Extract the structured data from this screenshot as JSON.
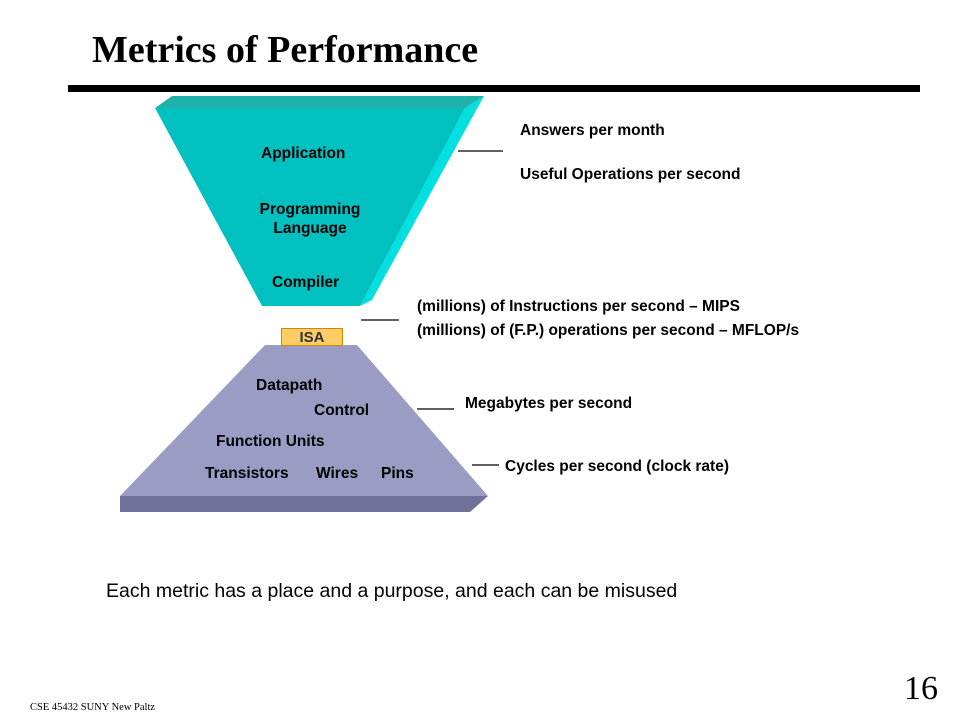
{
  "slide": {
    "title": "Metrics of Performance",
    "summary": "Each metric has a place and a purpose, and each can be misused",
    "page_number": "16",
    "footer": "CSE 45432 SUNY New Paltz"
  },
  "diagram": {
    "top_levels": {
      "application": "Application",
      "programming_language_1": "Programming",
      "programming_language_2": "Language",
      "compiler": "Compiler"
    },
    "isa": "ISA",
    "bottom_levels": {
      "datapath": "Datapath",
      "control": "Control",
      "function_units": "Function Units",
      "transistors": "Transistors",
      "wires": "Wires",
      "pins": "Pins"
    },
    "colors": {
      "upper_face": "#00c0c0",
      "upper_side": "#00e0e0",
      "upper_top": "#20b2aa",
      "lower_face": "#9a9cc4",
      "lower_bottom": "#70729a",
      "isa_fill": "#ffcc66"
    }
  },
  "metrics": {
    "answers": "Answers per month",
    "useful_ops": "Useful Operations per second",
    "mips": "(millions) of Instructions per second – MIPS",
    "mflops": "(millions) of (F.P.) operations per second – MFLOP/s",
    "megabytes": "Megabytes per second",
    "cycles": "Cycles per second (clock rate)"
  }
}
